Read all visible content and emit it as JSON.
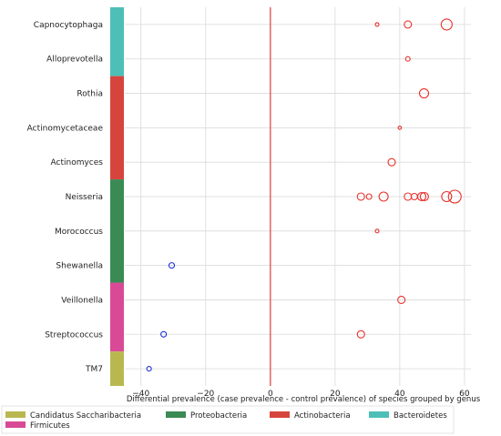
{
  "chart_data": {
    "type": "scatter",
    "xlabel": "Differential prevalence (case prevalence - control prevalence) of species grouped by genus",
    "ylabel": "",
    "xlim": [
      -45,
      62
    ],
    "x_ticks": [
      -40,
      -20,
      0,
      20,
      40,
      60
    ],
    "x_tick_labels": [
      "−40",
      "−20",
      "0",
      "20",
      "40",
      "60"
    ],
    "grid": true,
    "genera": [
      "Capnocytophaga",
      "Alloprevotella",
      "Rothia",
      "Actinomycetaceae",
      "Actinomyces",
      "Neisseria",
      "Morococcus",
      "Shewanella",
      "Veillonella",
      "Streptococcus",
      "TM7"
    ],
    "phylum_bands": [
      {
        "phylum": "Bacteroidetes",
        "color": "#4dbfb6",
        "genera": [
          "Capnocytophaga",
          "Alloprevotella"
        ]
      },
      {
        "phylum": "Actinobacteria",
        "color": "#d6453d",
        "genera": [
          "Rothia",
          "Actinomycetaceae",
          "Actinomyces"
        ]
      },
      {
        "phylum": "Proteobacteria",
        "color": "#3a8a54",
        "genera": [
          "Neisseria",
          "Morococcus",
          "Shewanella"
        ]
      },
      {
        "phylum": "Firmicutes",
        "color": "#d84a96",
        "genera": [
          "Veillonella",
          "Streptococcus"
        ]
      },
      {
        "phylum": "Candidatus Saccharibacteria",
        "color": "#b9b850",
        "genera": [
          "TM7"
        ]
      }
    ],
    "points": [
      {
        "genus": "Capnocytophaga",
        "x": 33,
        "size": 1,
        "color": "#e8302b"
      },
      {
        "genus": "Capnocytophaga",
        "x": 42.5,
        "size": 3,
        "color": "#e8302b"
      },
      {
        "genus": "Capnocytophaga",
        "x": 54.5,
        "size": 5,
        "color": "#e8302b"
      },
      {
        "genus": "Alloprevotella",
        "x": 42.5,
        "size": 1.5,
        "color": "#e8302b"
      },
      {
        "genus": "Rothia",
        "x": 47.5,
        "size": 4,
        "color": "#e8302b"
      },
      {
        "genus": "Actinomycetaceae",
        "x": 40,
        "size": 0.8,
        "color": "#e8302b"
      },
      {
        "genus": "Actinomyces",
        "x": 37.5,
        "size": 3,
        "color": "#e8302b"
      },
      {
        "genus": "Neisseria",
        "x": 28,
        "size": 3,
        "color": "#e8302b"
      },
      {
        "genus": "Neisseria",
        "x": 30.5,
        "size": 2,
        "color": "#e8302b"
      },
      {
        "genus": "Neisseria",
        "x": 35,
        "size": 4,
        "color": "#e8302b"
      },
      {
        "genus": "Neisseria",
        "x": 42.5,
        "size": 3,
        "color": "#e8302b"
      },
      {
        "genus": "Neisseria",
        "x": 44.5,
        "size": 2.5,
        "color": "#e8302b"
      },
      {
        "genus": "Neisseria",
        "x": 46.8,
        "size": 3.5,
        "color": "#e8302b"
      },
      {
        "genus": "Neisseria",
        "x": 47.6,
        "size": 3.5,
        "color": "#e8302b"
      },
      {
        "genus": "Neisseria",
        "x": 54.5,
        "size": 4.5,
        "color": "#e8302b"
      },
      {
        "genus": "Neisseria",
        "x": 57,
        "size": 6,
        "color": "#e8302b"
      },
      {
        "genus": "Morococcus",
        "x": 33,
        "size": 1,
        "color": "#e8302b"
      },
      {
        "genus": "Shewanella",
        "x": -30.5,
        "size": 2,
        "color": "#1a2fd6"
      },
      {
        "genus": "Veillonella",
        "x": 40.5,
        "size": 3,
        "color": "#e8302b"
      },
      {
        "genus": "Streptococcus",
        "x": -33,
        "size": 2,
        "color": "#1a2fd6"
      },
      {
        "genus": "Streptococcus",
        "x": 28,
        "size": 3,
        "color": "#e8302b"
      },
      {
        "genus": "TM7",
        "x": -37.5,
        "size": 1.5,
        "color": "#1a2fd6"
      }
    ],
    "zero_line_color": "#e04040",
    "legend": {
      "placement": "bottom",
      "entries": [
        {
          "label": "Candidatus Saccharibacteria",
          "color": "#b9b850"
        },
        {
          "label": "Proteobacteria",
          "color": "#3a8a54"
        },
        {
          "label": "Actinobacteria",
          "color": "#d6453d"
        },
        {
          "label": "Bacteroidetes",
          "color": "#4dbfb6"
        },
        {
          "label": "Firmicutes",
          "color": "#d84a96"
        }
      ]
    }
  }
}
